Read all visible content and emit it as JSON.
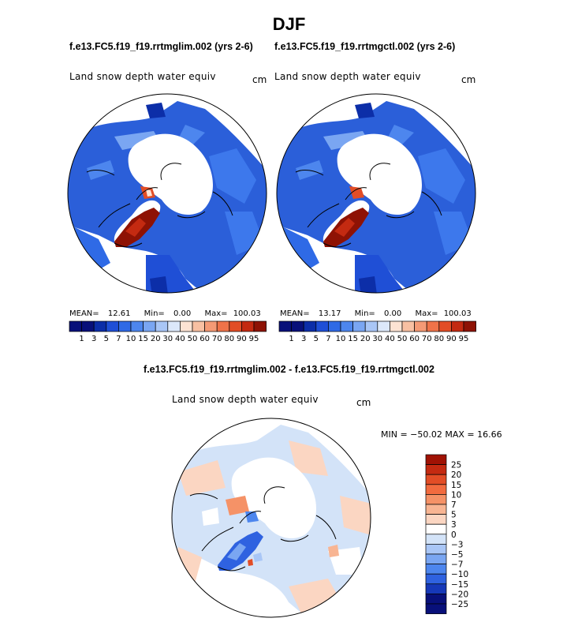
{
  "title": "DJF",
  "panels": [
    {
      "case_title": "f.e13.FC5.f19_f19.rrtmglim.002 (yrs 2-6)",
      "variable_label": "Land snow depth water equiv",
      "units": "cm",
      "stats_mean_label": "MEAN=",
      "stats_mean": "12.61",
      "stats_min_label": "Min=",
      "stats_min": "0.00",
      "stats_max_label": "Max=",
      "stats_max": "100.03"
    },
    {
      "case_title": "f.e13.FC5.f19_f19.rrtmgctl.002 (yrs 2-6)",
      "variable_label": "Land snow depth water equiv",
      "units": "cm",
      "stats_mean_label": "MEAN=",
      "stats_mean": "13.17",
      "stats_min_label": "Min=",
      "stats_min": "0.00",
      "stats_max_label": "Max=",
      "stats_max": "100.03"
    }
  ],
  "difference": {
    "title": "f.e13.FC5.f19_f19.rrtmglim.002 - f.e13.FC5.f19_f19.rrtmgctl.002",
    "variable_label": "Land snow depth water equiv",
    "units": "cm",
    "minmax_text": "MIN = −50.02  MAX =   16.66"
  },
  "chart_data": [
    {
      "type": "heatmap",
      "projection": "north-polar-stereographic",
      "title": "f.e13.FC5.f19_f19.rrtmglim.002 (yrs 2-6)",
      "variable": "Land snow depth water equiv",
      "units": "cm",
      "mean": 12.61,
      "min": 0.0,
      "max": 100.03,
      "colorbar_levels": [
        1,
        3,
        5,
        7,
        10,
        15,
        20,
        30,
        40,
        50,
        60,
        70,
        80,
        90,
        95
      ],
      "colorbar_labels": [
        "1",
        "3",
        "5",
        "7",
        "10",
        "15",
        "20",
        "30",
        "40",
        "50",
        "60",
        "70",
        "80",
        "90",
        "95"
      ],
      "colorbar_colors": [
        "#08107a",
        "#0c2ea8",
        "#1f4fd6",
        "#2f6ae6",
        "#4d86ee",
        "#7aa6f2",
        "#a9c6f6",
        "#dce8fa",
        "#fde3d3",
        "#f8c0a2",
        "#f49a75",
        "#ef7349",
        "#e24d26",
        "#c42a11",
        "#8e1204"
      ]
    },
    {
      "type": "heatmap",
      "projection": "north-polar-stereographic",
      "title": "f.e13.FC5.f19_f19.rrtmgctl.002 (yrs 2-6)",
      "variable": "Land snow depth water equiv",
      "units": "cm",
      "mean": 13.17,
      "min": 0.0,
      "max": 100.03,
      "colorbar_levels": [
        1,
        3,
        5,
        7,
        10,
        15,
        20,
        30,
        40,
        50,
        60,
        70,
        80,
        90,
        95
      ],
      "colorbar_labels": [
        "1",
        "3",
        "5",
        "7",
        "10",
        "15",
        "20",
        "30",
        "40",
        "50",
        "60",
        "70",
        "80",
        "90",
        "95"
      ]
    },
    {
      "type": "heatmap",
      "projection": "north-polar-stereographic",
      "title": "f.e13.FC5.f19_f19.rrtmglim.002 - f.e13.FC5.f19_f19.rrtmgctl.002",
      "variable": "Land snow depth water equiv",
      "units": "cm",
      "min": -50.02,
      "max": 16.66,
      "colorbar_levels": [
        25,
        20,
        15,
        10,
        7,
        5,
        3,
        0,
        -3,
        -5,
        -7,
        -10,
        -15,
        -20,
        -25
      ],
      "colorbar_labels": [
        "25",
        "20",
        "15",
        "10",
        "7",
        "5",
        "3",
        "0",
        "−3",
        "−5",
        "−7",
        "−10",
        "−15",
        "−20",
        "−25"
      ],
      "colorbar_colors": [
        "#a01204",
        "#c42a11",
        "#e24d26",
        "#f26b3f",
        "#f59267",
        "#f8b593",
        "#fbd6c2",
        "#ffffff",
        "#d3e3f8",
        "#a9c6f6",
        "#7aa6f2",
        "#4d86ee",
        "#2f62e0",
        "#1638b8",
        "#08107a"
      ]
    }
  ]
}
